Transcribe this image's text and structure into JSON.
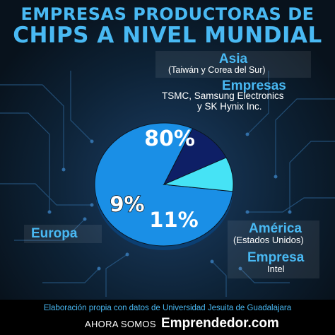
{
  "title": {
    "line1": "EMPRESAS PRODUCTORAS DE",
    "line2": "CHIPS A NIVEL MUNDIAL"
  },
  "colors": {
    "background": "#0a1622",
    "accent": "#49b9f3",
    "asia_slice": "#1a8fe6",
    "europa_slice": "#46e3f5",
    "america_slice": "#0e1f66"
  },
  "asia_box": {
    "region": "Asia",
    "region_detail": "(Taiwán y Corea del Sur)",
    "companies_label": "Empresas",
    "companies_line1": "TSMC, Samsung Electronics",
    "companies_line2": "y SK Hynix Inc."
  },
  "europa_box": {
    "region": "Europa"
  },
  "america_box": {
    "region": "América",
    "region_detail": "(Estados Unidos)",
    "company_label": "Empresa",
    "company": "Intel"
  },
  "chart_data": {
    "type": "pie",
    "categories": [
      "Asia",
      "Europa",
      "América"
    ],
    "values": [
      80,
      9,
      11
    ],
    "data_labels": [
      "80%",
      "9%",
      "11%"
    ],
    "colors": [
      "#1a8fe6",
      "#46e3f5",
      "#0e1f66"
    ]
  },
  "footer": {
    "source": "Elaboración propia con datos de Universidad Jesuita de Guadalajara",
    "ahora": "AHORA SOMOS",
    "brand": "Emprendedor.com"
  }
}
